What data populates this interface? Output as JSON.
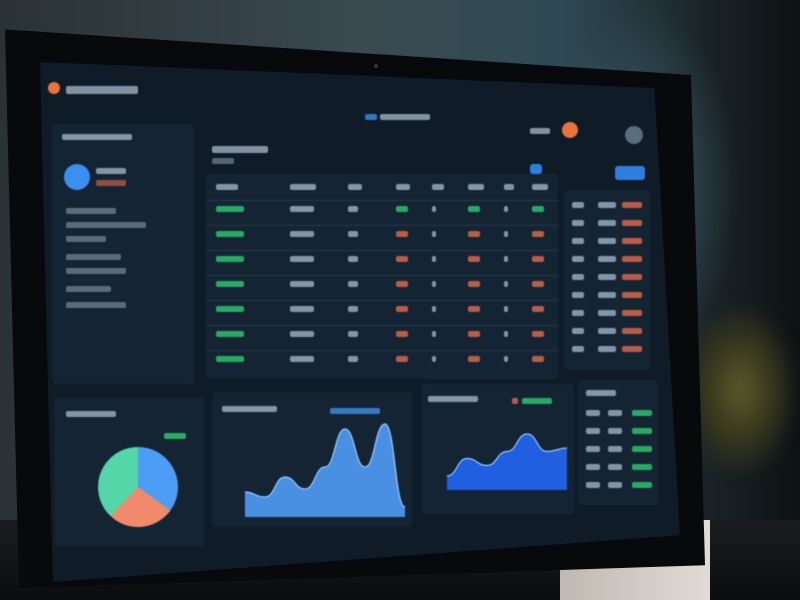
{
  "scene": {
    "description_type": "photo of monitor showing dark dashboard; on-screen text is illegible"
  },
  "colors": {
    "accent": "#3f8ee8",
    "positive": "#2ecc71",
    "negative": "#e46a4e",
    "pie": [
      "#4d9df5",
      "#f08a6a",
      "#55d6a8"
    ],
    "area_left": "#4a90e2",
    "area_right": "#1f5fe0"
  },
  "charts": {
    "left_area": {
      "type": "area",
      "values": [
        0.25,
        0.2,
        0.4,
        0.28,
        0.5,
        0.88,
        0.5,
        0.93,
        0.1
      ]
    },
    "right_area": {
      "type": "area",
      "values": [
        0.2,
        0.45,
        0.35,
        0.55,
        0.8,
        0.55,
        0.6
      ]
    },
    "pie": {
      "type": "pie",
      "values": [
        35,
        27,
        38
      ]
    }
  },
  "table": {
    "rows": 7,
    "cols": 8
  }
}
